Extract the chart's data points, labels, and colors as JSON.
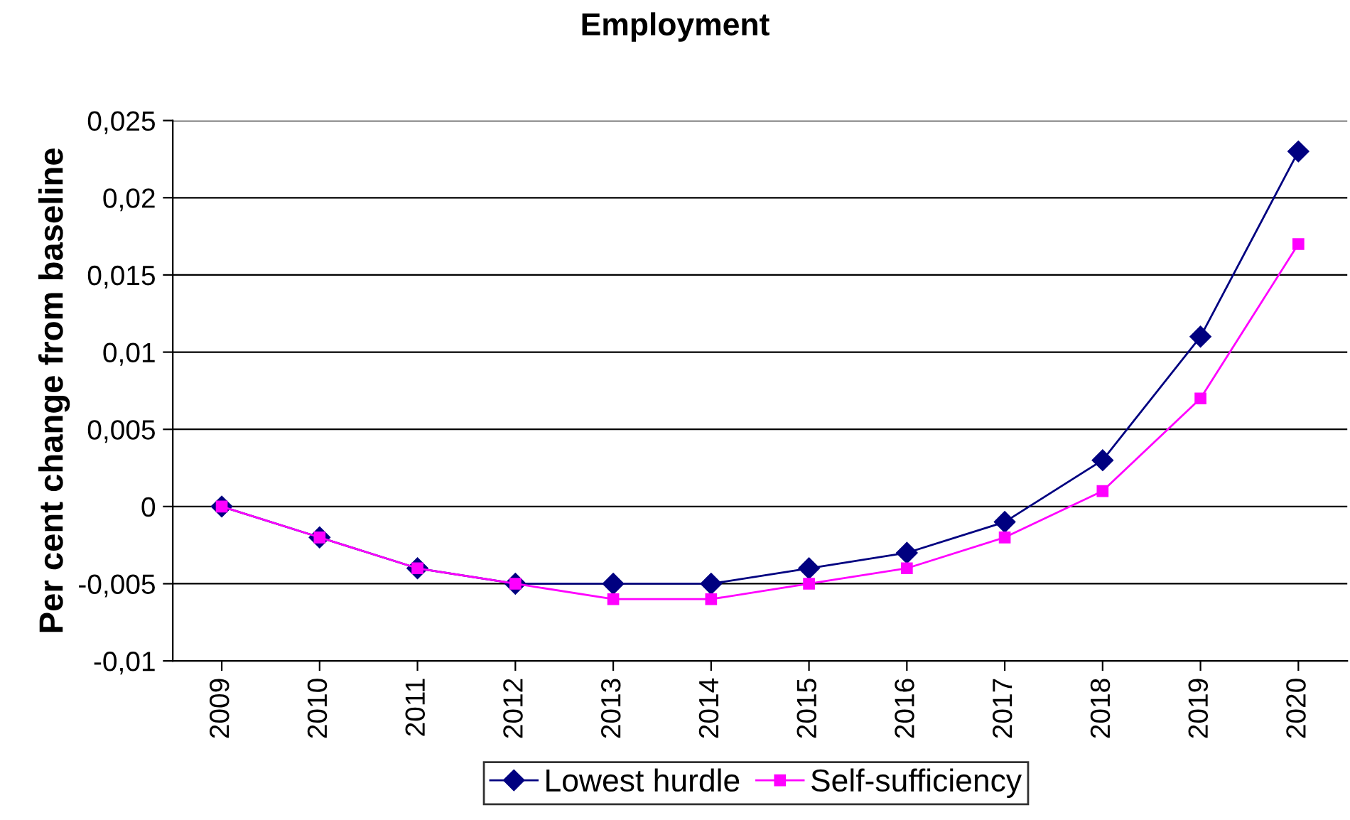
{
  "chart_data": {
    "type": "line",
    "title": "Employment",
    "ylabel": "Per cent change from baseline",
    "categories": [
      "2009",
      "2010",
      "2011",
      "2012",
      "2013",
      "2014",
      "2015",
      "2016",
      "2017",
      "2018",
      "2019",
      "2020"
    ],
    "series": [
      {
        "name": "Lowest hurdle",
        "color": "#000080",
        "marker": "diamond",
        "values": [
          0,
          -0.002,
          -0.004,
          -0.005,
          -0.005,
          -0.005,
          -0.004,
          -0.003,
          -0.001,
          0.003,
          0.011,
          0.023
        ]
      },
      {
        "name": "Self-sufficiency",
        "color": "#ff00ff",
        "marker": "square",
        "values": [
          0,
          -0.002,
          -0.004,
          -0.005,
          -0.006,
          -0.006,
          -0.005,
          -0.004,
          -0.002,
          0.001,
          0.007,
          0.017
        ]
      }
    ],
    "ylim": [
      -0.01,
      0.025
    ],
    "yticks": [
      {
        "value": -0.01,
        "label": "-0,01"
      },
      {
        "value": -0.005,
        "label": "-0,005"
      },
      {
        "value": 0,
        "label": "0"
      },
      {
        "value": 0.005,
        "label": "0,005"
      },
      {
        "value": 0.01,
        "label": "0,01"
      },
      {
        "value": 0.015,
        "label": "0,015"
      },
      {
        "value": 0.02,
        "label": "0,02"
      },
      {
        "value": 0.025,
        "label": "0,025"
      }
    ],
    "grid": "y",
    "legend": "bottom",
    "line_style": "solid"
  }
}
